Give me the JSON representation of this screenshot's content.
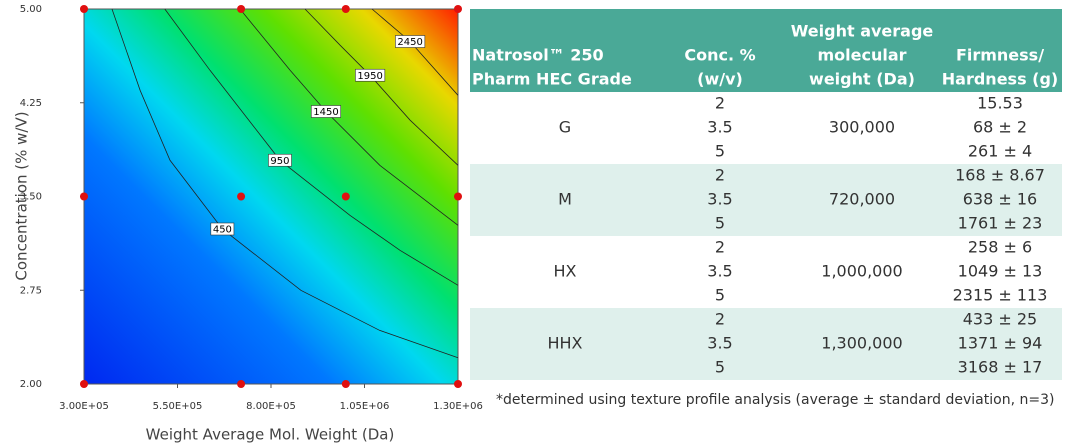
{
  "chart_data": {
    "type": "contour",
    "xlabel": "Weight Average Mol. Weight (Da)",
    "ylabel": "Concentration (% w/V)",
    "xlim": [
      300000,
      1300000
    ],
    "ylim": [
      2,
      5
    ],
    "xticks": [
      {
        "value": 300000,
        "label": "3.00E+05"
      },
      {
        "value": 550000,
        "label": "5.50E+05"
      },
      {
        "value": 800000,
        "label": "8.00E+05"
      },
      {
        "value": 1050000,
        "label": "1.05E+06"
      },
      {
        "value": 1300000,
        "label": "1.30E+06"
      }
    ],
    "yticks": [
      {
        "value": 2,
        "label": "2.00"
      },
      {
        "value": 2.75,
        "label": "2.75"
      },
      {
        "value": 3.5,
        "label": "3.50"
      },
      {
        "value": 4.25,
        "label": "4.25"
      },
      {
        "value": 5,
        "label": "5.00"
      }
    ],
    "points": {
      "color": "#e01010",
      "x": [
        300000,
        720000,
        1000000,
        1300000,
        300000,
        720000,
        1000000,
        1300000,
        300000,
        720000,
        1000000,
        1300000
      ],
      "y": [
        5,
        5,
        5,
        5,
        3.5,
        3.5,
        3.5,
        3.5,
        2,
        2,
        2,
        2
      ]
    },
    "contours": [
      {
        "level": 450,
        "x": [
          375000,
          450000,
          530000,
          670000,
          880000,
          1090000,
          1300000
        ],
        "y": [
          5.0,
          4.35,
          3.79,
          3.24,
          2.75,
          2.43,
          2.21
        ]
      },
      {
        "level": 950,
        "x": [
          516000,
          637000,
          824000,
          1011000,
          1145000,
          1300000
        ],
        "y": [
          5.0,
          4.51,
          3.79,
          3.35,
          3.07,
          2.79
        ]
      },
      {
        "level": 1450,
        "x": [
          717000,
          851000,
          947000,
          1091000,
          1300000
        ],
        "y": [
          5.0,
          4.51,
          4.18,
          3.75,
          3.27
        ]
      },
      {
        "level": 1950,
        "x": [
          891000,
          985000,
          1065000,
          1172000,
          1300000
        ],
        "y": [
          5.0,
          4.71,
          4.47,
          4.11,
          3.75
        ]
      },
      {
        "level": 2450,
        "x": [
          1070000,
          1172000,
          1300000
        ],
        "y": [
          5.0,
          4.74,
          4.31
        ]
      }
    ]
  },
  "table": {
    "header": [
      [
        "Natrosol™ 250",
        "Pharm HEC Grade"
      ],
      [
        "Conc. %",
        "(w/v)"
      ],
      [
        "Weight average",
        "molecular",
        "weight (Da)"
      ],
      [
        "Firmness/",
        "Hardness (g)"
      ]
    ],
    "groups": [
      {
        "grade": "G",
        "conc": [
          2,
          3.5,
          5
        ],
        "mw": "300,000",
        "firmness": [
          "15.53",
          "68 ± 2",
          "261 ± 4"
        ]
      },
      {
        "grade": "M",
        "conc": [
          2,
          3.5,
          5
        ],
        "mw": "720,000",
        "firmness": [
          "168 ± 8.67",
          "638 ± 16",
          "1761 ± 23"
        ]
      },
      {
        "grade": "HX",
        "conc": [
          2,
          3.5,
          5
        ],
        "mw": "1,000,000",
        "firmness": [
          "258 ± 6",
          "1049 ± 13",
          "2315 ± 113"
        ]
      },
      {
        "grade": "HHX",
        "conc": [
          2,
          3.5,
          5
        ],
        "mw": "1,300,000",
        "firmness": [
          "433 ± 25",
          "1371 ± 94",
          "3168 ± 17"
        ]
      }
    ],
    "footnote": "*determined using texture profile analysis (average ± standard deviation, n=3)"
  }
}
